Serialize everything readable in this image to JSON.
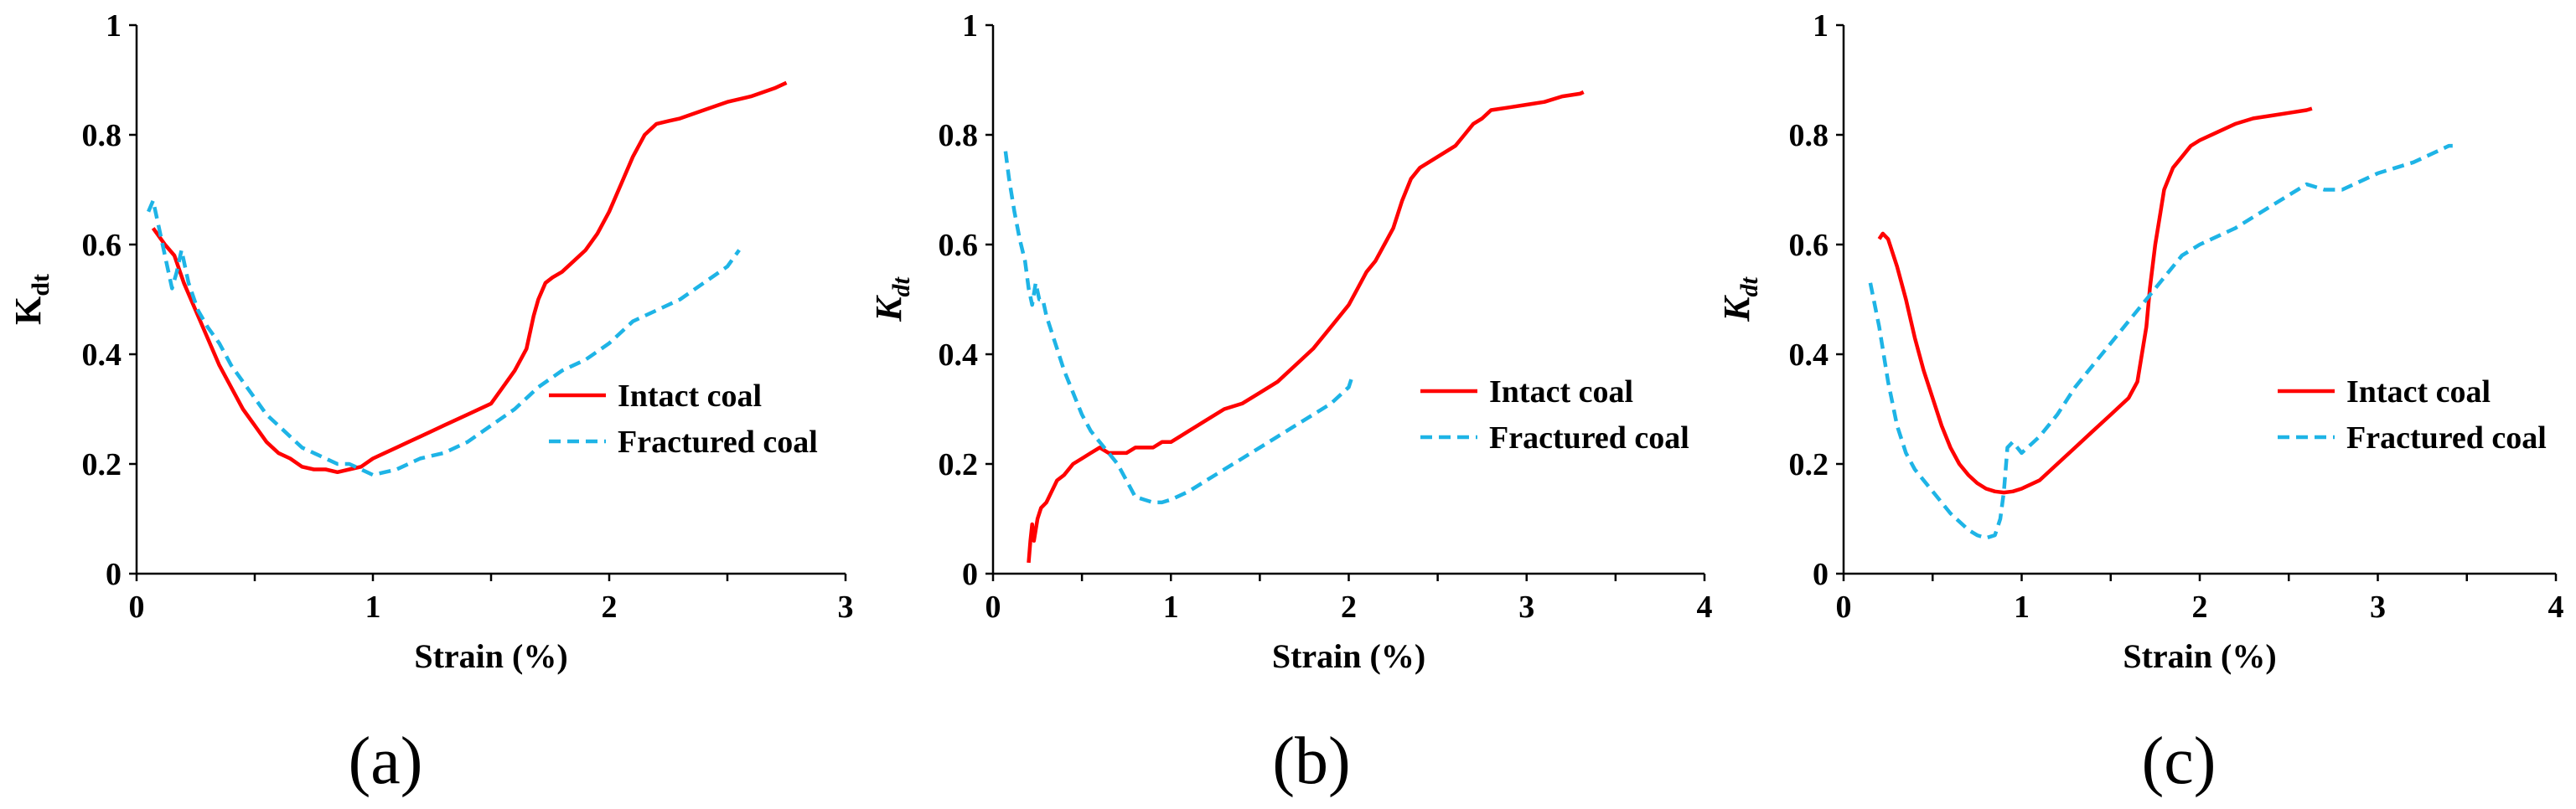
{
  "chart_data": [
    {
      "type": "line",
      "panel_label": "(a)",
      "xlabel": "Strain (%)",
      "ylabel": "K",
      "ylabel_sub": "dt",
      "ylabel_style": "upright",
      "xlim": [
        0,
        3
      ],
      "ylim": [
        0,
        1
      ],
      "xticks": [
        0,
        1,
        2,
        3
      ],
      "yticks": [
        0,
        0.2,
        0.4,
        0.6,
        0.8,
        1
      ],
      "legend": "middle-right",
      "series": [
        {
          "name": "Intact coal",
          "style": "solid",
          "color": "#FF0000",
          "x": [
            0.07,
            0.12,
            0.16,
            0.2,
            0.25,
            0.3,
            0.35,
            0.4,
            0.45,
            0.5,
            0.55,
            0.6,
            0.65,
            0.7,
            0.75,
            0.8,
            0.85,
            0.9,
            0.95,
            1.0,
            1.05,
            1.1,
            1.15,
            1.2,
            1.3,
            1.4,
            1.5,
            1.55,
            1.6,
            1.65,
            1.68,
            1.7,
            1.73,
            1.76,
            1.8,
            1.85,
            1.9,
            1.95,
            2.0,
            2.05,
            2.1,
            2.15,
            2.2,
            2.25,
            2.3,
            2.4,
            2.5,
            2.6,
            2.7,
            2.75
          ],
          "y": [
            0.63,
            0.6,
            0.58,
            0.53,
            0.48,
            0.43,
            0.38,
            0.34,
            0.3,
            0.27,
            0.24,
            0.22,
            0.21,
            0.195,
            0.19,
            0.19,
            0.185,
            0.19,
            0.195,
            0.21,
            0.22,
            0.23,
            0.24,
            0.25,
            0.27,
            0.29,
            0.31,
            0.34,
            0.37,
            0.41,
            0.47,
            0.5,
            0.53,
            0.54,
            0.55,
            0.57,
            0.59,
            0.62,
            0.66,
            0.71,
            0.76,
            0.8,
            0.82,
            0.825,
            0.83,
            0.845,
            0.86,
            0.87,
            0.885,
            0.895
          ]
        },
        {
          "name": "Fractured coal",
          "style": "dashed",
          "color": "#1EB4E6",
          "x": [
            0.05,
            0.07,
            0.09,
            0.12,
            0.15,
            0.17,
            0.19,
            0.22,
            0.26,
            0.3,
            0.35,
            0.4,
            0.45,
            0.5,
            0.55,
            0.6,
            0.65,
            0.7,
            0.75,
            0.8,
            0.85,
            0.9,
            0.95,
            1.0,
            1.05,
            1.1,
            1.2,
            1.3,
            1.4,
            1.5,
            1.6,
            1.7,
            1.8,
            1.9,
            2.0,
            2.1,
            2.2,
            2.3,
            2.4,
            2.5,
            2.55
          ],
          "y": [
            0.66,
            0.68,
            0.64,
            0.58,
            0.52,
            0.55,
            0.59,
            0.53,
            0.48,
            0.45,
            0.42,
            0.38,
            0.35,
            0.32,
            0.29,
            0.27,
            0.25,
            0.23,
            0.22,
            0.21,
            0.2,
            0.2,
            0.19,
            0.18,
            0.185,
            0.19,
            0.21,
            0.22,
            0.24,
            0.27,
            0.3,
            0.34,
            0.37,
            0.39,
            0.42,
            0.46,
            0.48,
            0.5,
            0.53,
            0.56,
            0.59
          ]
        }
      ]
    },
    {
      "type": "line",
      "panel_label": "(b)",
      "xlabel": "Strain (%)",
      "ylabel": "K",
      "ylabel_sub": "dt",
      "ylabel_style": "italic",
      "xlim": [
        0,
        4
      ],
      "ylim": [
        0,
        1
      ],
      "xticks": [
        0,
        1,
        2,
        3,
        4
      ],
      "yticks": [
        0,
        0.2,
        0.4,
        0.6,
        0.8,
        1
      ],
      "legend": "middle-right",
      "series": [
        {
          "name": "Intact coal",
          "style": "solid",
          "color": "#FF0000",
          "x": [
            0.2,
            0.21,
            0.22,
            0.23,
            0.25,
            0.27,
            0.3,
            0.33,
            0.36,
            0.4,
            0.45,
            0.5,
            0.55,
            0.6,
            0.65,
            0.7,
            0.75,
            0.8,
            0.85,
            0.9,
            0.95,
            1.0,
            1.05,
            1.1,
            1.2,
            1.3,
            1.4,
            1.5,
            1.6,
            1.7,
            1.8,
            1.9,
            2.0,
            2.05,
            2.1,
            2.15,
            2.2,
            2.25,
            2.3,
            2.35,
            2.4,
            2.5,
            2.6,
            2.65,
            2.7,
            2.75,
            2.8,
            2.9,
            3.0,
            3.1,
            3.2,
            3.3,
            3.32
          ],
          "y": [
            0.02,
            0.06,
            0.09,
            0.06,
            0.1,
            0.12,
            0.13,
            0.15,
            0.17,
            0.18,
            0.2,
            0.21,
            0.22,
            0.23,
            0.22,
            0.22,
            0.22,
            0.23,
            0.23,
            0.23,
            0.24,
            0.24,
            0.25,
            0.26,
            0.28,
            0.3,
            0.31,
            0.33,
            0.35,
            0.38,
            0.41,
            0.45,
            0.49,
            0.52,
            0.55,
            0.57,
            0.6,
            0.63,
            0.68,
            0.72,
            0.74,
            0.76,
            0.78,
            0.8,
            0.82,
            0.83,
            0.845,
            0.85,
            0.855,
            0.86,
            0.87,
            0.875,
            0.878
          ]
        },
        {
          "name": "Fractured coal",
          "style": "dashed",
          "color": "#1EB4E6",
          "x": [
            0.07,
            0.09,
            0.12,
            0.15,
            0.18,
            0.2,
            0.22,
            0.24,
            0.26,
            0.28,
            0.3,
            0.35,
            0.4,
            0.45,
            0.5,
            0.55,
            0.6,
            0.65,
            0.7,
            0.75,
            0.8,
            0.85,
            0.9,
            0.95,
            1.0,
            1.1,
            1.2,
            1.3,
            1.4,
            1.5,
            1.6,
            1.7,
            1.8,
            1.9,
            2.0,
            2.02
          ],
          "y": [
            0.77,
            0.72,
            0.66,
            0.61,
            0.57,
            0.52,
            0.49,
            0.53,
            0.5,
            0.5,
            0.47,
            0.42,
            0.37,
            0.33,
            0.29,
            0.26,
            0.24,
            0.22,
            0.2,
            0.17,
            0.14,
            0.135,
            0.13,
            0.13,
            0.135,
            0.15,
            0.17,
            0.19,
            0.21,
            0.23,
            0.25,
            0.27,
            0.29,
            0.31,
            0.34,
            0.36
          ]
        }
      ]
    },
    {
      "type": "line",
      "panel_label": "(c)",
      "xlabel": "Strain (%)",
      "ylabel": "K",
      "ylabel_sub": "dt",
      "ylabel_style": "italic",
      "xlim": [
        0,
        4
      ],
      "ylim": [
        0,
        1
      ],
      "xticks": [
        0,
        1,
        2,
        3,
        4
      ],
      "yticks": [
        0,
        0.2,
        0.4,
        0.6,
        0.8,
        1
      ],
      "legend": "middle-right",
      "series": [
        {
          "name": "Intact coal",
          "style": "solid",
          "color": "#FF0000",
          "x": [
            0.2,
            0.22,
            0.25,
            0.3,
            0.35,
            0.4,
            0.45,
            0.5,
            0.55,
            0.6,
            0.65,
            0.7,
            0.75,
            0.8,
            0.85,
            0.9,
            0.95,
            1.0,
            1.1,
            1.2,
            1.3,
            1.4,
            1.5,
            1.6,
            1.65,
            1.7,
            1.72,
            1.75,
            1.78,
            1.8,
            1.85,
            1.9,
            1.95,
            2.0,
            2.1,
            2.2,
            2.3,
            2.4,
            2.5,
            2.6,
            2.63
          ],
          "y": [
            0.61,
            0.62,
            0.61,
            0.56,
            0.5,
            0.43,
            0.37,
            0.32,
            0.27,
            0.23,
            0.2,
            0.18,
            0.165,
            0.155,
            0.15,
            0.148,
            0.15,
            0.155,
            0.17,
            0.2,
            0.23,
            0.26,
            0.29,
            0.32,
            0.35,
            0.45,
            0.52,
            0.6,
            0.66,
            0.7,
            0.74,
            0.76,
            0.78,
            0.79,
            0.805,
            0.82,
            0.83,
            0.835,
            0.84,
            0.845,
            0.848
          ]
        },
        {
          "name": "Fractured coal",
          "style": "dashed",
          "color": "#1EB4E6",
          "x": [
            0.15,
            0.2,
            0.25,
            0.3,
            0.35,
            0.4,
            0.5,
            0.6,
            0.7,
            0.75,
            0.8,
            0.85,
            0.88,
            0.9,
            0.92,
            0.95,
            1.0,
            1.1,
            1.2,
            1.3,
            1.4,
            1.5,
            1.6,
            1.7,
            1.8,
            1.9,
            2.0,
            2.2,
            2.4,
            2.6,
            2.7,
            2.8,
            3.0,
            3.2,
            3.4,
            3.42
          ],
          "y": [
            0.53,
            0.45,
            0.35,
            0.27,
            0.22,
            0.19,
            0.15,
            0.11,
            0.08,
            0.07,
            0.065,
            0.07,
            0.1,
            0.15,
            0.23,
            0.24,
            0.22,
            0.25,
            0.29,
            0.34,
            0.38,
            0.42,
            0.46,
            0.5,
            0.54,
            0.58,
            0.6,
            0.63,
            0.67,
            0.71,
            0.7,
            0.7,
            0.73,
            0.75,
            0.78,
            0.78
          ]
        }
      ]
    }
  ]
}
